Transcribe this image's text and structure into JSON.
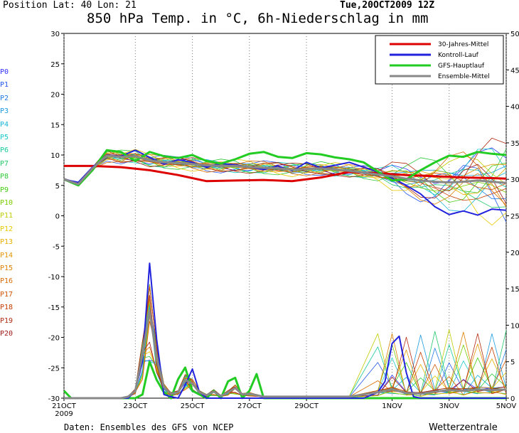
{
  "header": {
    "position": "Position   Lat: 40 Lon: 21",
    "run": "Tue,20OCT2009  12Z",
    "title": "850 hPa Temp. in °C, 6h-Niederschlag in mm"
  },
  "footer": {
    "source": "Daten: Ensembles des GFS von NCEP",
    "brand": "Wetterzentrale"
  },
  "members": [
    {
      "label": "P0",
      "color": "#3333ff"
    },
    {
      "label": "P1",
      "color": "#2255ee"
    },
    {
      "label": "P2",
      "color": "#1e7be0"
    },
    {
      "label": "P3",
      "color": "#1a9be0"
    },
    {
      "label": "P4",
      "color": "#14b5d8"
    },
    {
      "label": "P5",
      "color": "#19c9c9"
    },
    {
      "label": "P6",
      "color": "#16c89a"
    },
    {
      "label": "P7",
      "color": "#22c86a"
    },
    {
      "label": "P8",
      "color": "#2ec83a"
    },
    {
      "label": "P9",
      "color": "#44cc11"
    },
    {
      "label": "P10",
      "color": "#7ccc00"
    },
    {
      "label": "P11",
      "color": "#bfcc00"
    },
    {
      "label": "P12",
      "color": "#e8c800"
    },
    {
      "label": "P13",
      "color": "#e6b000"
    },
    {
      "label": "P14",
      "color": "#e29600"
    },
    {
      "label": "P15",
      "color": "#dd8000"
    },
    {
      "label": "P16",
      "color": "#d86a00"
    },
    {
      "label": "P17",
      "color": "#d05200"
    },
    {
      "label": "P18",
      "color": "#c43c00"
    },
    {
      "label": "P19",
      "color": "#b02a10"
    },
    {
      "label": "P20",
      "color": "#a01818"
    }
  ],
  "chart_data": {
    "type": "line",
    "title": "850 hPa Temp. in °C, 6h-Niederschlag in mm",
    "x_labels": [
      "21OCT 2009",
      "23OCT",
      "25OCT",
      "27OCT",
      "29OCT",
      "1NOV",
      "3NOV",
      "5NOV"
    ],
    "x_label_top": [
      "21OCT",
      "23OCT",
      "25OCT",
      "27OCT",
      "29OCT",
      "1NOV",
      "3NOV",
      "5NOV"
    ],
    "x_label_year": "2009",
    "x_range_hours": [
      0,
      372
    ],
    "x_label_hours": [
      0,
      60,
      108,
      156,
      204,
      276,
      324,
      372
    ],
    "y_left": {
      "label": "°C",
      "range": [
        -30,
        30
      ],
      "ticks": [
        30,
        25,
        20,
        15,
        10,
        5,
        0,
        -5,
        -10,
        -15,
        -20,
        -25,
        -30
      ]
    },
    "y_right": {
      "label": "mm",
      "range": [
        0,
        50
      ],
      "ticks": [
        50,
        45,
        40,
        35,
        30,
        25,
        20,
        15,
        10,
        5,
        0
      ]
    },
    "grid": true,
    "legend": {
      "placement": "top-right",
      "entries": [
        {
          "name": "30-Jahres-Mittel",
          "color": "#dd0000"
        },
        {
          "name": "Kontroll-Lauf",
          "color": "#2222dd"
        },
        {
          "name": "GFS-Hauptlauf",
          "color": "#22cc22"
        },
        {
          "name": "Ensemble-Mittel",
          "color": "#888888"
        }
      ]
    },
    "temp_series": [
      {
        "name": "30-Jahres-Mittel",
        "color": "#dd0000",
        "width": 3,
        "x": [
          0,
          24,
          48,
          72,
          96,
          120,
          144,
          168,
          192,
          216,
          240,
          264,
          288,
          312,
          336,
          360,
          372
        ],
        "y": [
          8.2,
          8.2,
          8.0,
          7.5,
          6.7,
          5.7,
          5.8,
          5.9,
          5.7,
          6.3,
          7.2,
          7.0,
          6.7,
          6.5,
          6.3,
          6.2,
          6.1
        ]
      },
      {
        "name": "Kontroll-Lauf",
        "color": "#2222dd",
        "width": 2,
        "x": [
          0,
          12,
          24,
          36,
          48,
          60,
          72,
          84,
          96,
          108,
          120,
          132,
          144,
          156,
          168,
          180,
          192,
          204,
          216,
          228,
          240,
          252,
          264,
          276,
          288,
          300,
          312,
          324,
          336,
          348,
          360,
          372
        ],
        "y": [
          6.0,
          5.5,
          8.0,
          10.0,
          9.8,
          10.8,
          9.6,
          8.5,
          9.2,
          8.8,
          8.0,
          8.6,
          8.4,
          8.0,
          7.6,
          8.2,
          7.4,
          8.8,
          7.9,
          8.3,
          8.8,
          8.0,
          7.2,
          6.2,
          5.0,
          3.6,
          1.5,
          0.2,
          0.8,
          0.1,
          1.1,
          0.9
        ]
      },
      {
        "name": "GFS-Hauptlauf",
        "color": "#22cc22",
        "width": 3,
        "x": [
          0,
          12,
          24,
          36,
          48,
          60,
          72,
          84,
          96,
          108,
          120,
          132,
          144,
          156,
          168,
          180,
          192,
          204,
          216,
          228,
          240,
          252,
          264,
          276,
          288,
          300,
          312,
          324,
          336,
          348,
          360,
          372
        ],
        "y": [
          6.0,
          5.0,
          7.5,
          10.8,
          10.5,
          9.0,
          10.5,
          9.8,
          9.5,
          10.0,
          9.0,
          8.6,
          9.3,
          10.2,
          10.5,
          9.7,
          9.5,
          10.3,
          10.1,
          9.6,
          9.3,
          8.8,
          7.3,
          5.8,
          6.0,
          7.5,
          8.8,
          9.9,
          9.7,
          10.5,
          10.2,
          10.0
        ]
      },
      {
        "name": "Ensemble-Mittel",
        "color": "#888888",
        "width": 3,
        "x": [
          0,
          12,
          24,
          36,
          48,
          60,
          72,
          84,
          96,
          108,
          120,
          132,
          144,
          156,
          168,
          180,
          192,
          204,
          216,
          228,
          240,
          252,
          264,
          276,
          288,
          300,
          312,
          324,
          336,
          348,
          360,
          372
        ],
        "y": [
          6.0,
          5.2,
          7.8,
          9.9,
          9.7,
          9.8,
          9.1,
          8.8,
          8.7,
          8.5,
          8.3,
          8.2,
          8.2,
          8.0,
          7.9,
          7.8,
          7.6,
          7.7,
          7.8,
          7.6,
          7.4,
          7.1,
          6.8,
          6.5,
          6.1,
          5.8,
          5.6,
          5.5,
          5.6,
          5.8,
          5.6,
          5.4
        ]
      }
    ],
    "precip_series": [
      {
        "name": "GFS-Hauptlauf",
        "color": "#22cc22",
        "width": 3,
        "x": [
          0,
          6,
          12,
          60,
          66,
          72,
          78,
          84,
          90,
          96,
          102,
          108,
          114,
          120,
          126,
          132,
          138,
          144,
          150,
          156,
          162,
          168,
          174,
          180,
          186,
          192,
          228,
          264,
          336,
          372
        ],
        "y": [
          1.0,
          0.0,
          0,
          0,
          0.5,
          5.0,
          2.5,
          0.8,
          0.0,
          2.6,
          4.2,
          1.0,
          0.5,
          0.0,
          1.0,
          0.0,
          2.3,
          2.8,
          0.0,
          1.0,
          3.3,
          0.0,
          0,
          0,
          0,
          0,
          0,
          0,
          0,
          0
        ]
      },
      {
        "name": "Kontroll-Lauf",
        "color": "#2222dd",
        "width": 2,
        "x": [
          0,
          48,
          54,
          60,
          66,
          72,
          78,
          84,
          90,
          96,
          102,
          108,
          114,
          120,
          240,
          252,
          264,
          270,
          276,
          282,
          288,
          294,
          300,
          312,
          372
        ],
        "y": [
          0,
          0,
          0,
          1.0,
          5.0,
          18.5,
          8.0,
          0.5,
          0.2,
          0.0,
          1.8,
          4.0,
          0.8,
          0,
          0,
          0,
          0.8,
          2.3,
          7.5,
          8.5,
          3.5,
          0.2,
          0,
          0,
          0
        ]
      },
      {
        "name": "Ensemble-Mittel",
        "color": "#888888",
        "width": 3,
        "x": [
          0,
          36,
          48,
          54,
          60,
          66,
          72,
          78,
          84,
          90,
          96,
          102,
          108,
          114,
          120,
          126,
          132,
          138,
          144,
          150,
          156,
          168,
          204,
          240,
          264,
          276,
          288,
          300,
          312,
          324,
          336,
          348,
          360,
          372
        ],
        "y": [
          0,
          0,
          0,
          0.2,
          1.0,
          6.0,
          12.0,
          5.5,
          1.5,
          0.6,
          0.8,
          2.5,
          2.0,
          0.8,
          0.4,
          0.9,
          0.3,
          0.8,
          1.4,
          0.5,
          0.6,
          0.2,
          0.2,
          0.2,
          0.8,
          1.2,
          0.7,
          0.6,
          0.9,
          1.1,
          1.0,
          1.2,
          1.1,
          1.2
        ]
      }
    ],
    "members_temp_note": "thin colored lines P0-P20 scattered around ensemble mean",
    "members_precip_note": "thin colored lines P0-P20 in lower panel"
  }
}
